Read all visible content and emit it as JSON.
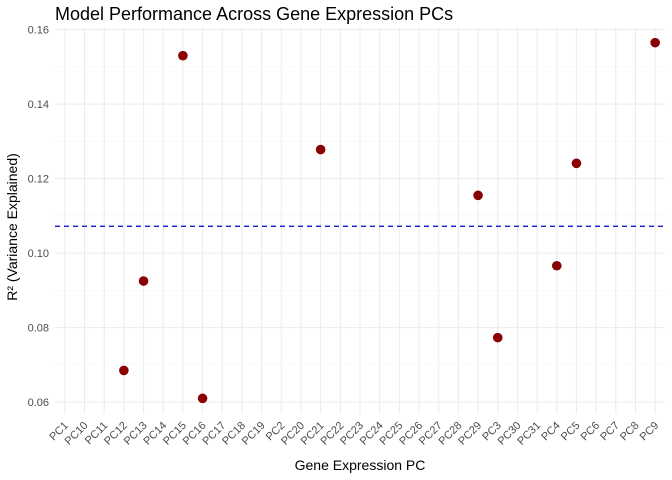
{
  "chart_data": {
    "type": "scatter",
    "title": "Model Performance Across Gene Expression PCs",
    "xlabel": "Gene Expression PC",
    "ylabel": "R² (Variance Explained)",
    "categories": [
      "PC1",
      "PC10",
      "PC11",
      "PC12",
      "PC13",
      "PC14",
      "PC15",
      "PC16",
      "PC17",
      "PC18",
      "PC19",
      "PC2",
      "PC20",
      "PC21",
      "PC22",
      "PC23",
      "PC24",
      "PC25",
      "PC26",
      "PC27",
      "PC28",
      "PC29",
      "PC3",
      "PC30",
      "PC31",
      "PC4",
      "PC5",
      "PC6",
      "PC7",
      "PC8",
      "PC9"
    ],
    "points": [
      {
        "x": "PC12",
        "y": 0.0685
      },
      {
        "x": "PC13",
        "y": 0.0925
      },
      {
        "x": "PC15",
        "y": 0.153
      },
      {
        "x": "PC16",
        "y": 0.061
      },
      {
        "x": "PC21",
        "y": 0.1278
      },
      {
        "x": "PC29",
        "y": 0.1155
      },
      {
        "x": "PC3",
        "y": 0.0773
      },
      {
        "x": "PC4",
        "y": 0.0966
      },
      {
        "x": "PC5",
        "y": 0.1241
      },
      {
        "x": "PC9",
        "y": 0.1565
      }
    ],
    "yticks": [
      0.06,
      0.08,
      0.1,
      0.12,
      0.14,
      0.16
    ],
    "ytick_labels": [
      "0.06",
      "0.08",
      "0.10",
      "0.12",
      "0.14",
      "0.16"
    ],
    "ylim": [
      0.0568,
      0.1607
    ],
    "reference_line": {
      "y": 0.1072,
      "style": "dashed"
    },
    "grid": true,
    "legend": "none"
  },
  "colors": {
    "point": "#8b0000",
    "reference_line": "#0000cc",
    "grid": "#ebebeb"
  }
}
